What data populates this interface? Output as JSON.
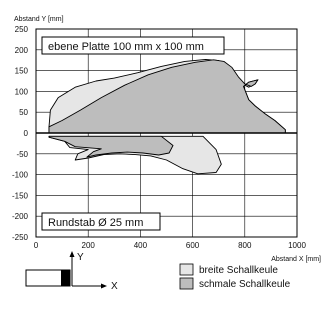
{
  "chart_data": {
    "type": "area",
    "xlabel": "Abstand X [mm]",
    "ylabel": "Abstand Y [mm]",
    "xlim": [
      0,
      1000
    ],
    "ylim": [
      -250,
      250
    ],
    "x_ticks": [
      0,
      200,
      400,
      600,
      800,
      1000
    ],
    "y_ticks": [
      250,
      200,
      150,
      100,
      50,
      0,
      -50,
      -100,
      -150,
      -200,
      -250
    ],
    "grid": true,
    "annotations": {
      "top": "ebene Platte 100 mm x 100 mm",
      "bottom": "Rundstab Ø 25 mm"
    },
    "legend_position": "bottom-right",
    "series": [
      {
        "name": "breite Schallkeule",
        "color": "#e6e6e6",
        "outline": [
          [
            50,
            15
          ],
          [
            55,
            55
          ],
          [
            85,
            85
          ],
          [
            150,
            110
          ],
          [
            230,
            125
          ],
          [
            300,
            132
          ],
          [
            390,
            145
          ],
          [
            480,
            160
          ],
          [
            570,
            172
          ],
          [
            650,
            177
          ],
          [
            700,
            174
          ],
          [
            735,
            160
          ],
          [
            760,
            140
          ],
          [
            785,
            120
          ],
          [
            815,
            110
          ],
          [
            840,
            118
          ],
          [
            850,
            128
          ],
          [
            815,
            122
          ],
          [
            795,
            112
          ],
          [
            815,
            80
          ],
          [
            840,
            65
          ],
          [
            880,
            45
          ],
          [
            915,
            30
          ],
          [
            955,
            8
          ],
          [
            955,
            0
          ],
          [
            50,
            0
          ]
        ]
      },
      {
        "name": "schmale Schallkeule",
        "color": "#bdbdbd",
        "outline": [
          [
            50,
            15
          ],
          [
            100,
            30
          ],
          [
            170,
            55
          ],
          [
            250,
            85
          ],
          [
            340,
            115
          ],
          [
            430,
            140
          ],
          [
            520,
            158
          ],
          [
            610,
            170
          ],
          [
            680,
            176
          ],
          [
            720,
            172
          ],
          [
            750,
            158
          ],
          [
            775,
            135
          ],
          [
            800,
            118
          ],
          [
            825,
            112
          ],
          [
            840,
            118
          ],
          [
            850,
            128
          ],
          [
            815,
            122
          ],
          [
            795,
            112
          ],
          [
            815,
            80
          ],
          [
            840,
            65
          ],
          [
            880,
            45
          ],
          [
            915,
            30
          ],
          [
            955,
            8
          ],
          [
            955,
            0
          ],
          [
            50,
            0
          ]
        ]
      },
      {
        "name": "breite Schallkeule",
        "color": "#e6e6e6",
        "outline": [
          [
            50,
            -8
          ],
          [
            640,
            -8
          ],
          [
            690,
            -40
          ],
          [
            710,
            -75
          ],
          [
            690,
            -95
          ],
          [
            620,
            -98
          ],
          [
            560,
            -85
          ],
          [
            500,
            -65
          ],
          [
            440,
            -55
          ],
          [
            380,
            -52
          ],
          [
            320,
            -50
          ],
          [
            260,
            -52
          ],
          [
            200,
            -60
          ],
          [
            150,
            -65
          ],
          [
            160,
            -50
          ],
          [
            200,
            -40
          ],
          [
            130,
            -35
          ],
          [
            110,
            -20
          ],
          [
            50,
            -10
          ]
        ]
      },
      {
        "name": "schmale Schallkeule",
        "color": "#bdbdbd",
        "outline": [
          [
            50,
            -8
          ],
          [
            480,
            -8
          ],
          [
            525,
            -30
          ],
          [
            510,
            -48
          ],
          [
            470,
            -53
          ],
          [
            410,
            -48
          ],
          [
            350,
            -46
          ],
          [
            290,
            -48
          ],
          [
            230,
            -53
          ],
          [
            195,
            -58
          ],
          [
            220,
            -45
          ],
          [
            250,
            -38
          ],
          [
            150,
            -33
          ],
          [
            110,
            -20
          ],
          [
            50,
            -10
          ]
        ]
      }
    ]
  },
  "legend": [
    {
      "label": "breite Schallkeule",
      "color": "#e6e6e6"
    },
    {
      "label": "schmale Schallkeule",
      "color": "#bdbdbd"
    }
  ],
  "coord_diagram": {
    "y_label": "Y",
    "x_label": "X"
  }
}
